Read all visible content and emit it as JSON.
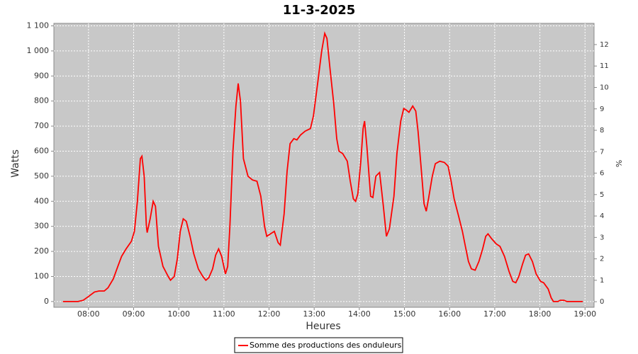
{
  "chart_data": {
    "type": "line",
    "title": "11-3-2025",
    "x_label": "Heures",
    "y_label": "Watts",
    "y2_label": "%",
    "x": [
      446,
      466,
      473,
      480,
      488,
      494,
      501,
      506,
      513,
      519,
      524,
      530,
      537,
      541,
      545,
      549,
      551,
      554,
      557,
      558,
      562,
      566,
      569,
      573,
      579,
      586,
      589,
      594,
      598,
      602,
      606,
      610,
      615,
      620,
      626,
      632,
      636,
      640,
      645,
      649,
      653,
      657,
      662,
      665,
      668,
      672,
      676,
      679,
      682,
      686,
      692,
      698,
      704,
      709,
      714,
      717,
      722,
      727,
      732,
      735,
      740,
      744,
      748,
      753,
      757,
      762,
      768,
      775,
      779,
      785,
      790,
      794,
      797,
      801,
      806,
      810,
      813,
      818,
      824,
      828,
      832,
      835,
      838,
      842,
      845,
      847,
      850,
      855,
      858,
      862,
      867,
      872,
      876,
      880,
      886,
      890,
      895,
      899,
      902,
      906,
      911,
      915,
      918,
      922,
      926,
      929,
      932,
      937,
      941,
      947,
      953,
      958,
      962,
      966,
      972,
      977,
      981,
      985,
      989,
      994,
      999,
      1004,
      1008,
      1011,
      1016,
      1022,
      1027,
      1033,
      1039,
      1044,
      1048,
      1052,
      1057,
      1061,
      1065,
      1070,
      1075,
      1081,
      1085,
      1091,
      1095,
      1098,
      1104,
      1107,
      1112,
      1116,
      1137
    ],
    "series": [
      {
        "name": "Somme des productions des onduleurs",
        "color": "#ff0000",
        "values": [
          0,
          0,
          5,
          20,
          38,
          42,
          42,
          55,
          90,
          140,
          180,
          210,
          240,
          280,
          400,
          570,
          580,
          500,
          300,
          275,
          330,
          400,
          380,
          220,
          140,
          100,
          85,
          100,
          170,
          280,
          330,
          320,
          260,
          190,
          130,
          100,
          85,
          95,
          130,
          185,
          210,
          180,
          110,
          140,
          300,
          600,
          780,
          870,
          800,
          570,
          500,
          485,
          480,
          420,
          300,
          260,
          270,
          280,
          235,
          225,
          350,
          520,
          630,
          650,
          645,
          665,
          680,
          690,
          740,
          880,
          1000,
          1070,
          1050,
          930,
          790,
          650,
          600,
          590,
          560,
          480,
          410,
          400,
          430,
          560,
          690,
          720,
          620,
          420,
          415,
          500,
          515,
          380,
          260,
          290,
          420,
          590,
          720,
          770,
          765,
          755,
          780,
          760,
          680,
          540,
          390,
          360,
          410,
          500,
          550,
          560,
          555,
          540,
          480,
          410,
          340,
          280,
          220,
          160,
          130,
          125,
          160,
          210,
          260,
          270,
          250,
          230,
          220,
          180,
          120,
          80,
          75,
          100,
          150,
          185,
          190,
          160,
          110,
          80,
          75,
          50,
          15,
          0,
          0,
          5,
          5,
          0,
          0
        ]
      }
    ],
    "xlim": [
      434,
      1152
    ],
    "xticks": [
      {
        "value": 480,
        "label": "08:00"
      },
      {
        "value": 540,
        "label": "09:00"
      },
      {
        "value": 600,
        "label": "10:00"
      },
      {
        "value": 660,
        "label": "11:00"
      },
      {
        "value": 720,
        "label": "12:00"
      },
      {
        "value": 780,
        "label": "13:00"
      },
      {
        "value": 840,
        "label": "14:00"
      },
      {
        "value": 900,
        "label": "15:00"
      },
      {
        "value": 960,
        "label": "16:00"
      },
      {
        "value": 1020,
        "label": "17:00"
      },
      {
        "value": 1080,
        "label": "18:00"
      },
      {
        "value": 1140,
        "label": "19:00"
      }
    ],
    "ylim": [
      -23,
      1110
    ],
    "yticks": [
      0,
      100,
      200,
      300,
      400,
      500,
      600,
      700,
      800,
      900,
      {
        "value": 1000,
        "label": "1 000"
      },
      {
        "value": 1100,
        "label": "1 100"
      }
    ],
    "y2lim": [
      -0.26,
      12.99
    ],
    "y2ticks": [
      0,
      1,
      2,
      3,
      4,
      5,
      6,
      7,
      8,
      9,
      10,
      11,
      12
    ],
    "grid": true
  }
}
